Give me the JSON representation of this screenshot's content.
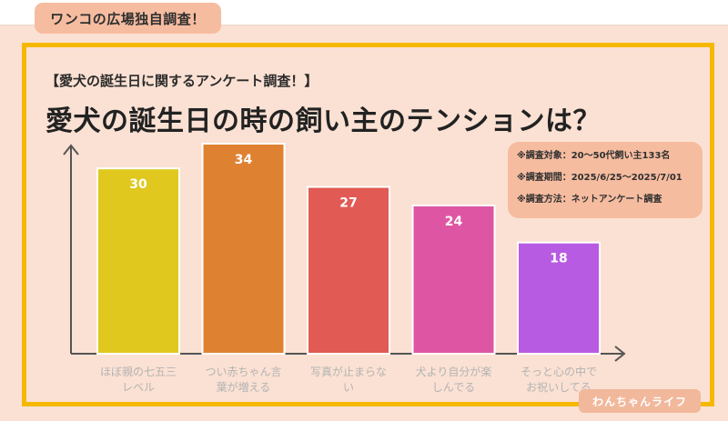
{
  "header": {
    "site_badge": "ワンコの広場独自調査！"
  },
  "subtitle": "【愛犬の誕生日に関するアンケート調査！】",
  "survey": [
    "※調査対象：20～50代飼い主133名",
    "※調査期間：2025/6/25～2025/7/01",
    "※調査方法：ネットアンケート調査"
  ],
  "logo_text": "わんちゃんライフ",
  "colors": {
    "background": "#fbe1d3",
    "frame": "#f5b800",
    "badge": "#f6bca0",
    "axis": "#555555"
  },
  "chart_data": {
    "type": "bar",
    "title": "愛犬の誕生日の時の飼い主のテンションは？",
    "categories": [
      "ほぼ親の七五三レベル",
      "つい赤ちゃん言葉が増える",
      "写真が止まらない",
      "犬より自分が楽しんでる",
      "そっと心の中でお祝いしてる"
    ],
    "category_lines": [
      [
        "ほぼ親の七五三",
        "レベル"
      ],
      [
        "つい赤ちゃん言",
        "葉が増える"
      ],
      [
        "写真が止まらな",
        "い"
      ],
      [
        "犬より自分が楽",
        "しんでる"
      ],
      [
        "そっと心の中で",
        "お祝いしてる"
      ]
    ],
    "values": [
      30,
      34,
      27,
      24,
      18
    ],
    "colors": [
      "#e0c81e",
      "#de8232",
      "#e15a54",
      "#de56a3",
      "#b85be3"
    ],
    "ylim": [
      0,
      34
    ],
    "xlabel": "",
    "ylabel": "",
    "grid": false,
    "legend": "none"
  }
}
